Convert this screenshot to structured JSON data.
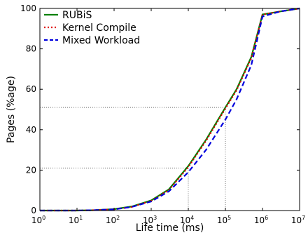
{
  "chart_data": {
    "type": "line",
    "x_scale": "log",
    "xlabel": "Life time (ms)",
    "ylabel": "Pages (%age)",
    "xlim": [
      1,
      10000000
    ],
    "ylim": [
      0,
      100
    ],
    "x_ticks": [
      {
        "value": 1,
        "base": "10",
        "exp": "0"
      },
      {
        "value": 10,
        "base": "10",
        "exp": "1"
      },
      {
        "value": 100,
        "base": "10",
        "exp": "2"
      },
      {
        "value": 1000,
        "base": "10",
        "exp": "3"
      },
      {
        "value": 10000,
        "base": "10",
        "exp": "4"
      },
      {
        "value": 100000,
        "base": "10",
        "exp": "5"
      },
      {
        "value": 1000000,
        "base": "10",
        "exp": "6"
      },
      {
        "value": 10000000,
        "base": "10",
        "exp": "7"
      }
    ],
    "y_ticks": [
      0,
      20,
      40,
      60,
      80,
      100
    ],
    "grid": false,
    "legend_position": "top-left",
    "series": [
      {
        "name": "RUBiS",
        "color": "#008000",
        "dash": "solid",
        "points": [
          [
            1,
            0
          ],
          [
            10,
            0
          ],
          [
            30,
            0.2
          ],
          [
            100,
            0.7
          ],
          [
            300,
            2
          ],
          [
            1000,
            5
          ],
          [
            3000,
            10.5
          ],
          [
            10000,
            22
          ],
          [
            30000,
            35
          ],
          [
            100000,
            51
          ],
          [
            200000,
            60
          ],
          [
            500000,
            76
          ],
          [
            1000000,
            97
          ],
          [
            3000000,
            98.5
          ],
          [
            10000000,
            100
          ]
        ]
      },
      {
        "name": "Kernel Compile",
        "color": "#e00000",
        "dash": "dotted",
        "points": [
          [
            1,
            0
          ],
          [
            10,
            0
          ],
          [
            30,
            0.2
          ],
          [
            100,
            0.6
          ],
          [
            300,
            1.8
          ],
          [
            1000,
            4.8
          ],
          [
            3000,
            10.2
          ],
          [
            10000,
            21.5
          ],
          [
            30000,
            34.5
          ],
          [
            100000,
            50.5
          ],
          [
            200000,
            59.5
          ],
          [
            500000,
            75.5
          ],
          [
            1000000,
            97
          ],
          [
            3000000,
            98.5
          ],
          [
            10000000,
            100
          ]
        ]
      },
      {
        "name": "Mixed Workload",
        "color": "#0000dd",
        "dash": "dashed",
        "points": [
          [
            1,
            0
          ],
          [
            10,
            0
          ],
          [
            30,
            0.2
          ],
          [
            100,
            0.6
          ],
          [
            300,
            1.8
          ],
          [
            1000,
            4.5
          ],
          [
            3000,
            9.5
          ],
          [
            10000,
            19
          ],
          [
            30000,
            30
          ],
          [
            100000,
            45
          ],
          [
            200000,
            55
          ],
          [
            500000,
            72
          ],
          [
            1000000,
            96
          ],
          [
            3000000,
            98.5
          ],
          [
            10000000,
            100
          ]
        ]
      }
    ],
    "reference_lines": [
      {
        "x": 10000,
        "y": 21
      },
      {
        "x": 100000,
        "y": 51
      }
    ]
  }
}
